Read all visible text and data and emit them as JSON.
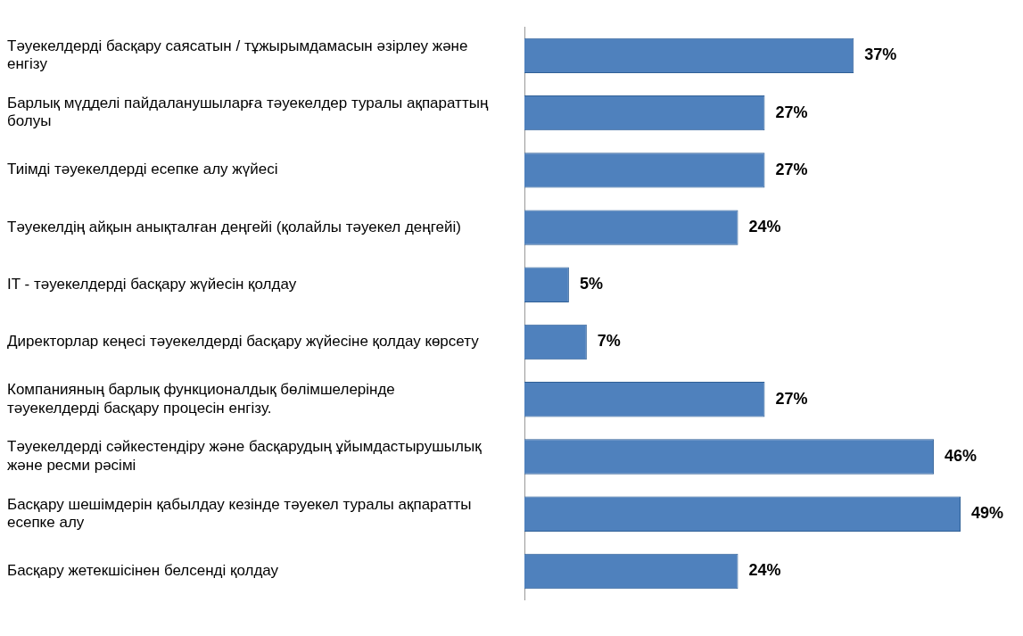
{
  "chart_data": {
    "type": "bar",
    "orientation": "horizontal",
    "categories": [
      "Тәуекелдерді басқару саясатын / тұжырымдамасын әзірлеу және енгізу",
      "Барлық мүдделі пайдаланушыларға тәуекелдер туралы ақпараттың болуы",
      "Тиімді тәуекелдерді есепке алу жүйесі",
      "Тәуекелдің айқын анықталған деңгейі (қолайлы тәуекел деңгейі)",
      "IT - тәуекелдерді басқару жүйесін қолдау",
      "Директорлар кеңесі тәуекелдерді басқару жүйесіне қолдау көрсету",
      "Компанияның барлық функционалдық бөлімшелерінде тәуекелдерді басқару процесін енгізу.",
      "Тәуекелдерді сәйкестендіру және басқарудың ұйымдастырушылық және ресми рәсімі",
      "Басқару шешімдерін қабылдау кезінде тәуекел туралы ақпаратты есепке алу",
      "Басқару жетекшісінен белсенді қолдау"
    ],
    "values": [
      37,
      27,
      27,
      24,
      5,
      7,
      27,
      46,
      49,
      24
    ],
    "value_labels": [
      "37%",
      "27%",
      "27%",
      "24%",
      "5%",
      "7%",
      "27%",
      "46%",
      "49%",
      "24%"
    ],
    "color": "#4f81bd"
  }
}
